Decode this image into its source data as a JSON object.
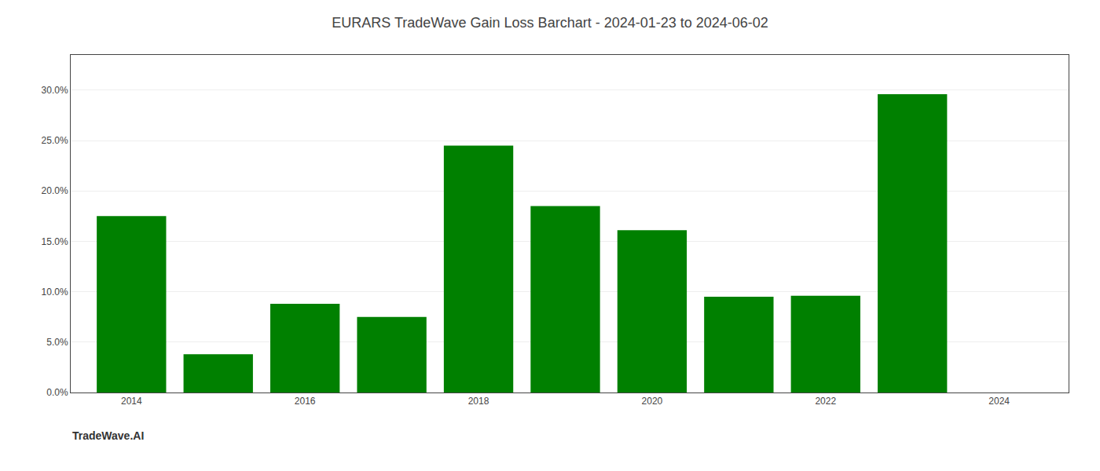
{
  "chart_data": {
    "type": "bar",
    "title": "EURARS TradeWave Gain Loss Barchart - 2024-01-23 to 2024-06-02",
    "annotations": [
      "TradeWave.AI"
    ],
    "x": [
      2014,
      2015,
      2016,
      2017,
      2018,
      2019,
      2020,
      2021,
      2022,
      2023
    ],
    "values": [
      0.175,
      0.038,
      0.088,
      0.075,
      0.245,
      0.185,
      0.161,
      0.095,
      0.096,
      0.296
    ],
    "color": "#008000",
    "xlim": [
      2013.3,
      2024.8
    ],
    "xticks": [
      2014,
      2016,
      2018,
      2020,
      2022,
      2024
    ],
    "ylim": [
      0,
      0.335
    ],
    "yticks": [
      {
        "value": 0.0,
        "label": "0.0%"
      },
      {
        "value": 0.05,
        "label": "5.0%"
      },
      {
        "value": 0.1,
        "label": "10.0%"
      },
      {
        "value": 0.15,
        "label": "15.0%"
      },
      {
        "value": 0.2,
        "label": "20.0%"
      },
      {
        "value": 0.25,
        "label": "25.0%"
      },
      {
        "value": 0.3,
        "label": "30.0%"
      }
    ],
    "grid": true
  }
}
